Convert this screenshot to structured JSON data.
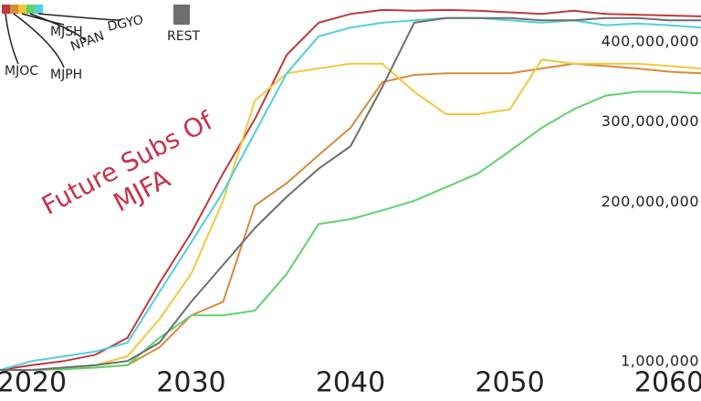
{
  "chart_data": {
    "type": "line",
    "annotation": [
      "Future Subs Of",
      "MJFA"
    ],
    "annotation_color": "#c8324a",
    "x": [
      2018,
      2020,
      2022,
      2024,
      2026,
      2028,
      2030,
      2032,
      2034,
      2036,
      2038,
      2040,
      2042,
      2044,
      2046,
      2048,
      2050,
      2052,
      2054,
      2056,
      2058,
      2060,
      2062
    ],
    "xlim": [
      2018,
      2062
    ],
    "xticks": [
      2020,
      2030,
      2040,
      2050,
      2060
    ],
    "ylim": [
      0,
      450000000
    ],
    "yticks": [
      {
        "value": 1000000,
        "label": "1,000,000"
      },
      {
        "value": 200000000,
        "label": "200,000,000"
      },
      {
        "value": 300000000,
        "label": "300,000,000"
      },
      {
        "value": 400000000,
        "label": "400,000,000"
      }
    ],
    "grid": false,
    "legend": "top-left",
    "series": [
      {
        "name": "MJOC",
        "color": "#c0393b",
        "values": [
          0,
          6000000,
          11000000,
          19000000,
          40000000,
          108000000,
          171000000,
          245000000,
          313000000,
          393000000,
          433000000,
          444000000,
          449000000,
          448000000,
          449000000,
          448000000,
          446000000,
          444000000,
          448000000,
          444000000,
          443000000,
          442000000,
          441000000
        ]
      },
      {
        "name": "MJPH",
        "color": "#d98a3a",
        "values": [
          0,
          0,
          1000000,
          3000000,
          6000000,
          28000000,
          68000000,
          85000000,
          205000000,
          233000000,
          268000000,
          302000000,
          359000000,
          368000000,
          370000000,
          370000000,
          370000000,
          376000000,
          382000000,
          379000000,
          376000000,
          372000000,
          370000000
        ]
      },
      {
        "name": "MJSH",
        "color": "#f0c93a",
        "values": [
          0,
          0,
          2000000,
          6000000,
          17000000,
          63000000,
          120000000,
          211000000,
          336000000,
          370000000,
          376000000,
          382000000,
          382000000,
          347000000,
          319000000,
          319000000,
          325000000,
          387000000,
          382000000,
          382000000,
          382000000,
          379000000,
          376000000
        ]
      },
      {
        "name": "NPAN",
        "color": "#5fd36a",
        "values": [
          0,
          0,
          1000000,
          3000000,
          6000000,
          40000000,
          68000000,
          68000000,
          74000000,
          120000000,
          182000000,
          188000000,
          199000000,
          211000000,
          228000000,
          245000000,
          273000000,
          302000000,
          325000000,
          342000000,
          347000000,
          347000000,
          345000000
        ]
      },
      {
        "name": "DGYO",
        "color": "#4fcfe0",
        "values": [
          0,
          11000000,
          17000000,
          23000000,
          34000000,
          97000000,
          159000000,
          222000000,
          296000000,
          370000000,
          416000000,
          427000000,
          433000000,
          436000000,
          439000000,
          439000000,
          436000000,
          433000000,
          436000000,
          430000000,
          432000000,
          430000000,
          427000000
        ]
      },
      {
        "name": "REST",
        "color": "#6e6e6e",
        "values": [
          0,
          0,
          3000000,
          6000000,
          11000000,
          34000000,
          85000000,
          131000000,
          177000000,
          216000000,
          251000000,
          279000000,
          353000000,
          433000000,
          439000000,
          439000000,
          439000000,
          436000000,
          436000000,
          439000000,
          439000000,
          436000000,
          436000000
        ]
      }
    ]
  }
}
